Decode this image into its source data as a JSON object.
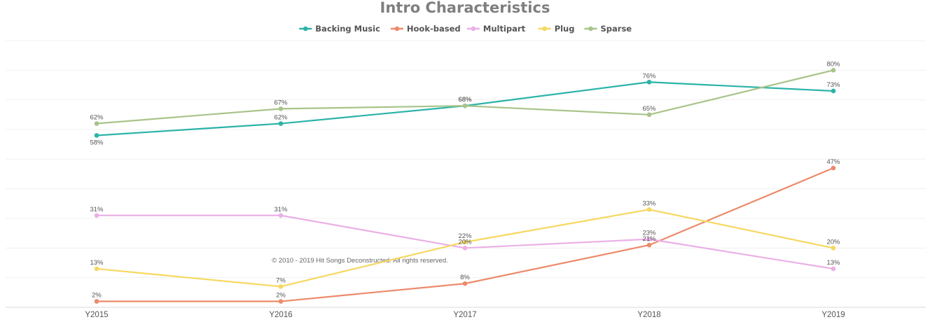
{
  "chart_data": {
    "type": "line",
    "title": "Intro Characteristics",
    "xlabel": "",
    "ylabel": "",
    "categories": [
      "Y2015",
      "Y2016",
      "Y2017",
      "Y2018",
      "Y2019"
    ],
    "ylim": [
      0,
      90
    ],
    "grid": true,
    "legend_position": "top-center",
    "series": [
      {
        "name": "Backing Music",
        "color": "#2bb3a8",
        "values": [
          58,
          62,
          68,
          76,
          73
        ],
        "labels": [
          "58%",
          "62%",
          "68%",
          "76%",
          "73%"
        ]
      },
      {
        "name": "Hook-based",
        "color": "#ec8a6a",
        "values": [
          2,
          2,
          8,
          21,
          47
        ],
        "labels": [
          "2%",
          "2%",
          "8%",
          "21%",
          "47%"
        ]
      },
      {
        "name": "Multipart",
        "color": "#eab0e6",
        "values": [
          31,
          31,
          20,
          23,
          13
        ],
        "labels": [
          "31%",
          "31%",
          "20%",
          "23%",
          "13%"
        ]
      },
      {
        "name": "Plug",
        "color": "#f6d860",
        "values": [
          13,
          7,
          22,
          33,
          20
        ],
        "labels": [
          "13%",
          "7%",
          "22%",
          "33%",
          "20%"
        ]
      },
      {
        "name": "Sparse",
        "color": "#a9c48a",
        "values": [
          62,
          67,
          68,
          65,
          80
        ],
        "labels": [
          "62%",
          "67%",
          "68%",
          "65%",
          "80%"
        ]
      }
    ]
  },
  "copyright": "© 2010 - 2019 Hit Songs Deconstructed. All rights reserved."
}
